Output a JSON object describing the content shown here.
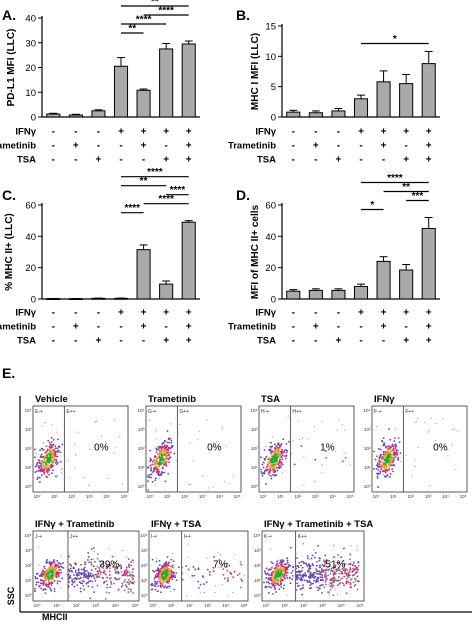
{
  "row_labels": [
    "IFNγ",
    "Trametinib",
    "TSA"
  ],
  "plus": "+",
  "minus": "-",
  "chart_data": [
    {
      "panel": "A.",
      "type": "bar",
      "ylabel": "PD-L1 MFI (LLC)",
      "ylim": [
        0,
        40
      ],
      "yticks": [
        "0",
        "10",
        "20",
        "30",
        "40"
      ],
      "categories": [
        "- - -",
        "- + -",
        "- - +",
        "+ - -",
        "+ + -",
        "+ - +",
        "+ + +"
      ],
      "treatments": [
        [
          0,
          0,
          0
        ],
        [
          0,
          1,
          0
        ],
        [
          0,
          0,
          1
        ],
        [
          1,
          0,
          0
        ],
        [
          1,
          1,
          0
        ],
        [
          1,
          0,
          1
        ],
        [
          1,
          1,
          1
        ]
      ],
      "values": [
        1.2,
        0.8,
        2.5,
        20.5,
        10.8,
        27.5,
        29.5
      ],
      "errors": [
        0.3,
        0.3,
        0.4,
        3.5,
        0.5,
        2.2,
        1.2
      ],
      "significance": [
        {
          "from": 3,
          "to": 4,
          "label": "**"
        },
        {
          "from": 3,
          "to": 5,
          "label": "****"
        },
        {
          "from": 4,
          "to": 6,
          "label": "****"
        },
        {
          "from": 3,
          "to": 6,
          "label": "**"
        }
      ]
    },
    {
      "panel": "B.",
      "type": "bar",
      "ylabel": "MHC I MFI (LLC)",
      "ylim": [
        0,
        15
      ],
      "yticks": [
        "0",
        "5",
        "10",
        "15"
      ],
      "categories": [
        "- - -",
        "- + -",
        "- - +",
        "+ - -",
        "+ + -",
        "+ - +",
        "+ + +"
      ],
      "treatments": [
        [
          0,
          0,
          0
        ],
        [
          0,
          1,
          0
        ],
        [
          0,
          0,
          1
        ],
        [
          1,
          0,
          0
        ],
        [
          1,
          1,
          0
        ],
        [
          1,
          0,
          1
        ],
        [
          1,
          1,
          1
        ]
      ],
      "values": [
        0.8,
        0.7,
        1.0,
        3.0,
        5.8,
        5.5,
        8.8
      ],
      "errors": [
        0.3,
        0.3,
        0.4,
        0.6,
        1.8,
        1.5,
        2.0
      ],
      "significance": [
        {
          "from": 3,
          "to": 6,
          "label": "*"
        }
      ]
    },
    {
      "panel": "C.",
      "type": "bar",
      "ylabel": "% MHC II+ (LLC)",
      "ylim": [
        0,
        60
      ],
      "yticks": [
        "0",
        "20",
        "40",
        "60"
      ],
      "categories": [
        "- - -",
        "- + -",
        "- - +",
        "+ - -",
        "+ + -",
        "+ - +",
        "+ + +"
      ],
      "treatments": [
        [
          0,
          0,
          0
        ],
        [
          0,
          1,
          0
        ],
        [
          0,
          0,
          1
        ],
        [
          1,
          0,
          0
        ],
        [
          1,
          1,
          0
        ],
        [
          1,
          0,
          1
        ],
        [
          1,
          1,
          1
        ]
      ],
      "values": [
        0.2,
        0.2,
        0.4,
        0.4,
        31.5,
        9.5,
        49.0
      ],
      "errors": [
        0.1,
        0.1,
        0.2,
        0.2,
        3.0,
        2.0,
        1.0
      ],
      "significance": [
        {
          "from": 3,
          "to": 4,
          "label": "****"
        },
        {
          "from": 4,
          "to": 6,
          "label": "****"
        },
        {
          "from": 5,
          "to": 6,
          "label": "****"
        },
        {
          "from": 3,
          "to": 5,
          "label": "**"
        },
        {
          "from": 3,
          "to": 6,
          "label": "****"
        }
      ]
    },
    {
      "panel": "D.",
      "type": "bar",
      "ylabel": "MFI of MHC II+ cells",
      "ylim": [
        0,
        60
      ],
      "yticks": [
        "0",
        "20",
        "40",
        "60"
      ],
      "categories": [
        "- - -",
        "- + -",
        "- - +",
        "+ - -",
        "+ + -",
        "+ - +",
        "+ + +"
      ],
      "treatments": [
        [
          0,
          0,
          0
        ],
        [
          0,
          1,
          0
        ],
        [
          0,
          0,
          1
        ],
        [
          1,
          0,
          0
        ],
        [
          1,
          1,
          0
        ],
        [
          1,
          0,
          1
        ],
        [
          1,
          1,
          1
        ]
      ],
      "values": [
        5.0,
        5.5,
        5.5,
        8.0,
        24.0,
        18.5,
        45.0
      ],
      "errors": [
        1.0,
        1.0,
        1.0,
        1.5,
        3.0,
        3.5,
        7.0
      ],
      "significance": [
        {
          "from": 3,
          "to": 4,
          "label": "*"
        },
        {
          "from": 5,
          "to": 6,
          "label": "***"
        },
        {
          "from": 4,
          "to": 6,
          "label": "**"
        },
        {
          "from": 3,
          "to": 6,
          "label": "****"
        }
      ]
    }
  ],
  "flow": {
    "panel": "E.",
    "y_axis_label": "SSC",
    "x_axis_label": "MHCII",
    "x_ticks": [
      "10⁰",
      "10¹",
      "10²",
      "10³",
      "10⁴",
      "10⁵"
    ],
    "y_ticks": [
      "10⁰",
      "10¹",
      "10²",
      "10³",
      "10⁴"
    ],
    "plots": [
      {
        "title": "Vehicle",
        "gate_neg": "E-+",
        "gate_pos": "E++",
        "percent": "0%",
        "spread": 0.0
      },
      {
        "title": "Trametinib",
        "gate_neg": "G-+",
        "gate_pos": "G++",
        "percent": "0%",
        "spread": 0.0
      },
      {
        "title": "TSA",
        "gate_neg": "H-+",
        "gate_pos": "H++",
        "percent": "1%",
        "spread": 0.01
      },
      {
        "title": "IFNγ",
        "gate_neg": "F-+",
        "gate_pos": "F++",
        "percent": "0%",
        "spread": 0.0
      },
      {
        "title": "IFNγ + Trametinib",
        "gate_neg": "J-+",
        "gate_pos": "J++",
        "percent": "39%",
        "spread": 0.39
      },
      {
        "title": "IFNγ + TSA",
        "gate_neg": "I-+",
        "gate_pos": "I++",
        "percent": "7%",
        "spread": 0.07
      },
      {
        "title": "IFNγ + Trametinib + TSA",
        "gate_neg": "K-+",
        "gate_pos": "K++",
        "percent": "51%",
        "spread": 0.51
      }
    ]
  }
}
